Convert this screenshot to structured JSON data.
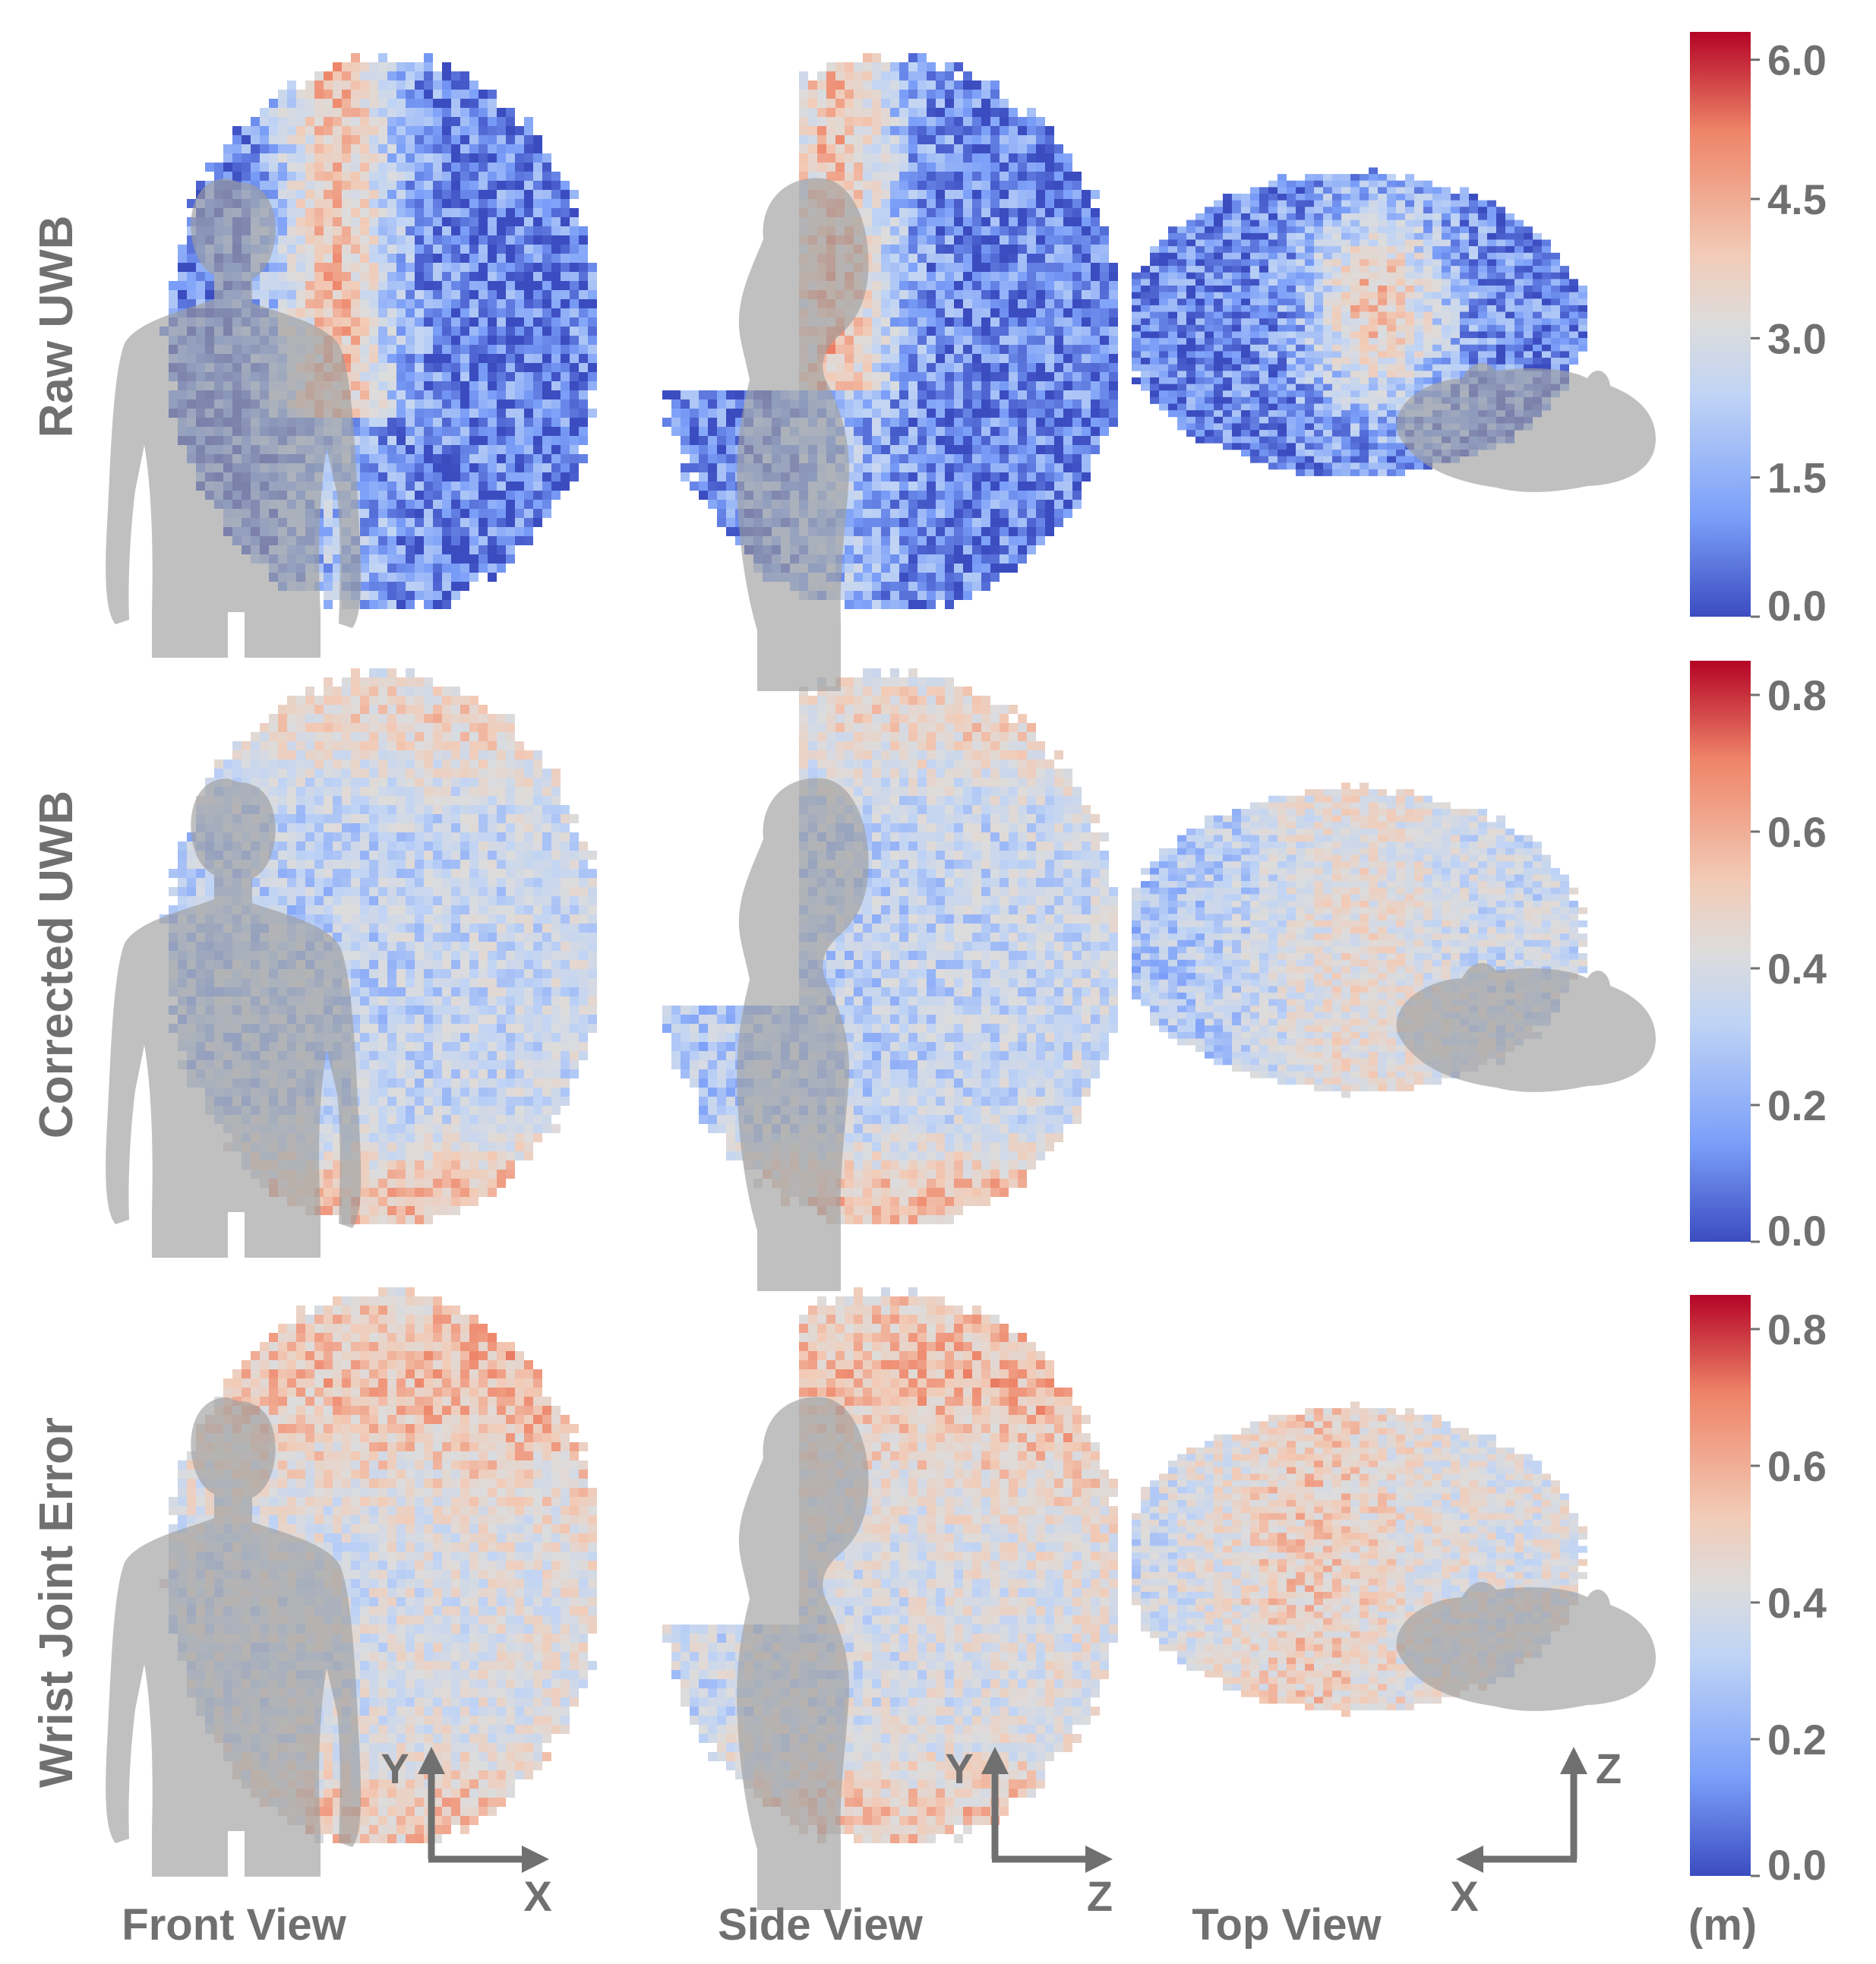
{
  "figure": {
    "row_titles": [
      "Raw UWB",
      "Corrected UWB",
      "Wrist Joint Error"
    ],
    "column_titles": [
      "Front View",
      "Side View",
      "Top View"
    ],
    "unit_label": "(m)",
    "axes_labels": {
      "front": {
        "vertical": "Y",
        "horizontal": "X"
      },
      "side": {
        "vertical": "Y",
        "horizontal": "Z"
      },
      "top": {
        "vertical": "Z",
        "horizontal": "X"
      }
    },
    "colormap": [
      "#3b4cc0",
      "#7b9ff9",
      "#c0d4f5",
      "#dddcdc",
      "#f2cbb7",
      "#ee8468",
      "#b40426"
    ],
    "silhouette_color": "#9e9e9e"
  },
  "chart_data": [
    {
      "type": "heatmap",
      "row": "Raw UWB",
      "views": [
        "Front View",
        "Side View",
        "Top View"
      ],
      "colorbar": {
        "range": [
          0.0,
          6.3
        ],
        "ticks": [
          0.0,
          1.5,
          3.0,
          4.5,
          6.0
        ],
        "tick_labels": [
          "0.0",
          "1.5",
          "3.0",
          "4.5",
          "6.0"
        ]
      },
      "description_of_values": "mostly low error (blue) with a high band (red, ~4-5 m) in the upper-middle region"
    },
    {
      "type": "heatmap",
      "row": "Corrected UWB",
      "views": [
        "Front View",
        "Side View",
        "Top View"
      ],
      "colorbar": {
        "range": [
          0.0,
          0.85
        ],
        "ticks": [
          0.0,
          0.2,
          0.4,
          0.6,
          0.8
        ],
        "tick_labels": [
          "0.0",
          "0.2",
          "0.4",
          "0.6",
          "0.8"
        ]
      },
      "description_of_values": "mostly 0.2-0.5 m, higher near the top and bottom edges"
    },
    {
      "type": "heatmap",
      "row": "Wrist Joint Error",
      "views": [
        "Front View",
        "Side View",
        "Top View"
      ],
      "colorbar": {
        "range": [
          0.0,
          0.85
        ],
        "ticks": [
          0.0,
          0.2,
          0.4,
          0.6,
          0.8
        ],
        "tick_labels": [
          "0.0",
          "0.2",
          "0.4",
          "0.6",
          "0.8"
        ]
      },
      "description_of_values": "0.3-0.7 m, highest in the upper region of the reach envelope"
    }
  ]
}
